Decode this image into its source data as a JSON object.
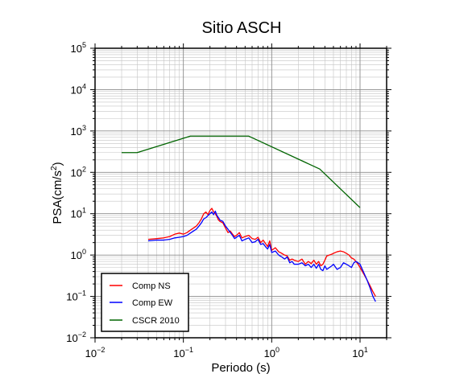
{
  "chart_data": {
    "type": "line",
    "title": "Sitio ASCH",
    "xlabel": "Periodo (s)",
    "ylabel_base": "PSA(cm/s",
    "ylabel_sup": "2",
    "ylabel_end": ")",
    "x_scale": "log",
    "y_scale": "log",
    "xlim": [
      0.01,
      20
    ],
    "ylim": [
      0.01,
      100000
    ],
    "grid": true,
    "legend_position": "bottom-left",
    "x_ticks": [
      {
        "value": 0.01,
        "base": "10",
        "exp": "−2"
      },
      {
        "value": 0.1,
        "base": "10",
        "exp": "−1"
      },
      {
        "value": 1,
        "base": "10",
        "exp": "0"
      },
      {
        "value": 10,
        "base": "10",
        "exp": "1"
      }
    ],
    "y_ticks": [
      {
        "value": 0.01,
        "base": "10",
        "exp": "−2"
      },
      {
        "value": 0.1,
        "base": "10",
        "exp": "−1"
      },
      {
        "value": 1,
        "base": "10",
        "exp": "0"
      },
      {
        "value": 10,
        "base": "10",
        "exp": "1"
      },
      {
        "value": 100,
        "base": "10",
        "exp": "2"
      },
      {
        "value": 1000,
        "base": "10",
        "exp": "3"
      },
      {
        "value": 10000,
        "base": "10",
        "exp": "4"
      },
      {
        "value": 100000,
        "base": "10",
        "exp": "5"
      }
    ],
    "series": [
      {
        "name": "Comp NS",
        "color": "#ff0000",
        "x": [
          0.04,
          0.05,
          0.06,
          0.07,
          0.08,
          0.09,
          0.1,
          0.11,
          0.12,
          0.13,
          0.14,
          0.15,
          0.16,
          0.17,
          0.18,
          0.19,
          0.2,
          0.21,
          0.22,
          0.23,
          0.24,
          0.25,
          0.26,
          0.28,
          0.3,
          0.32,
          0.34,
          0.36,
          0.38,
          0.4,
          0.43,
          0.46,
          0.5,
          0.55,
          0.6,
          0.65,
          0.7,
          0.75,
          0.8,
          0.85,
          0.9,
          0.95,
          1.0,
          1.1,
          1.2,
          1.3,
          1.4,
          1.5,
          1.6,
          1.7,
          1.8,
          2.0,
          2.2,
          2.4,
          2.6,
          2.8,
          3.0,
          3.2,
          3.4,
          3.6,
          3.8,
          4.0,
          4.2,
          4.5,
          4.8,
          5.0,
          5.5,
          6.0,
          6.5,
          7.0,
          7.5,
          8.0,
          8.5,
          9.0,
          9.5,
          10.0,
          11.0,
          12.0,
          13.0,
          14.0,
          15.0
        ],
        "y": [
          2.4,
          2.5,
          2.6,
          2.8,
          3.2,
          3.4,
          3.2,
          3.5,
          4.0,
          4.5,
          5.0,
          6.0,
          7.5,
          10.0,
          11.0,
          9.5,
          12.0,
          13.5,
          11.0,
          10.0,
          8.5,
          7.0,
          6.5,
          6.0,
          4.5,
          3.5,
          3.8,
          3.2,
          2.8,
          3.0,
          3.5,
          2.6,
          2.8,
          3.0,
          2.5,
          2.4,
          2.7,
          2.0,
          2.3,
          1.9,
          1.6,
          2.2,
          1.3,
          1.5,
          1.2,
          1.1,
          1.0,
          0.95,
          0.75,
          0.8,
          0.75,
          0.7,
          0.8,
          0.6,
          0.7,
          0.62,
          0.75,
          0.6,
          0.7,
          0.55,
          0.6,
          0.75,
          0.95,
          1.0,
          1.05,
          1.1,
          1.2,
          1.25,
          1.2,
          1.1,
          1.0,
          0.85,
          0.8,
          0.7,
          0.6,
          0.5,
          0.35,
          0.25,
          0.18,
          0.13,
          0.1
        ]
      },
      {
        "name": "Comp EW",
        "color": "#0000ff",
        "x": [
          0.04,
          0.05,
          0.06,
          0.07,
          0.08,
          0.09,
          0.1,
          0.11,
          0.12,
          0.13,
          0.14,
          0.15,
          0.16,
          0.17,
          0.18,
          0.19,
          0.2,
          0.21,
          0.22,
          0.23,
          0.24,
          0.25,
          0.26,
          0.28,
          0.3,
          0.32,
          0.34,
          0.36,
          0.38,
          0.4,
          0.43,
          0.46,
          0.5,
          0.55,
          0.6,
          0.65,
          0.7,
          0.75,
          0.8,
          0.85,
          0.9,
          0.95,
          1.0,
          1.1,
          1.2,
          1.3,
          1.4,
          1.5,
          1.6,
          1.7,
          1.8,
          2.0,
          2.2,
          2.4,
          2.6,
          2.8,
          3.0,
          3.2,
          3.4,
          3.6,
          3.8,
          4.0,
          4.2,
          4.5,
          4.8,
          5.0,
          5.5,
          6.0,
          6.5,
          7.0,
          7.5,
          8.0,
          8.5,
          9.0,
          9.5,
          10.0,
          11.0,
          12.0,
          13.0,
          14.0,
          15.0
        ],
        "y": [
          2.2,
          2.3,
          2.3,
          2.4,
          2.6,
          2.7,
          2.8,
          3.0,
          3.4,
          3.8,
          4.2,
          5.0,
          6.0,
          7.5,
          8.0,
          9.0,
          10.0,
          11.0,
          9.5,
          11.5,
          9.0,
          8.0,
          7.0,
          6.5,
          5.0,
          4.2,
          3.5,
          3.0,
          2.5,
          2.7,
          3.0,
          2.2,
          2.4,
          2.6,
          2.0,
          2.1,
          2.4,
          1.8,
          1.9,
          1.6,
          1.4,
          1.8,
          1.15,
          1.25,
          1.0,
          0.9,
          0.8,
          0.9,
          0.65,
          0.7,
          0.6,
          0.6,
          0.65,
          0.55,
          0.6,
          0.5,
          0.6,
          0.48,
          0.6,
          0.45,
          0.42,
          0.55,
          0.45,
          0.5,
          0.55,
          0.6,
          0.45,
          0.5,
          0.65,
          0.6,
          0.55,
          0.5,
          0.65,
          0.7,
          0.65,
          0.6,
          0.38,
          0.25,
          0.16,
          0.1,
          0.075
        ]
      },
      {
        "name": "CSCR 2010",
        "color": "#006400",
        "x": [
          0.02,
          0.03,
          0.12,
          0.55,
          3.5,
          10.0
        ],
        "y": [
          300,
          300,
          750,
          750,
          120,
          14
        ]
      }
    ]
  }
}
